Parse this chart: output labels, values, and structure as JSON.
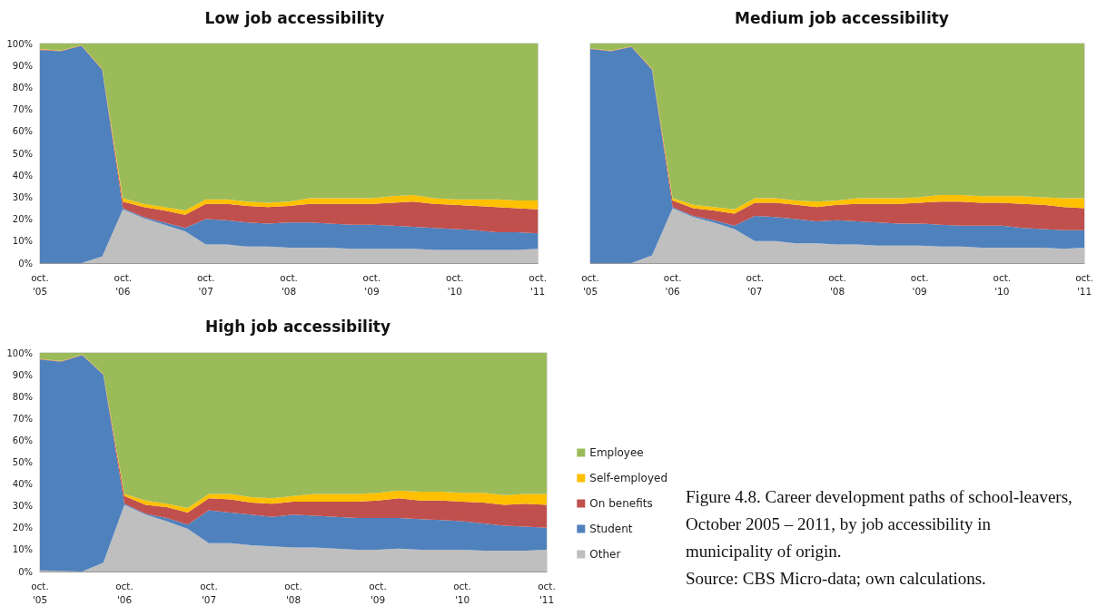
{
  "chart_data": [
    {
      "type": "area",
      "stacked": true,
      "title": "Low job accessibility",
      "categories": [
        "oct. '05",
        null,
        null,
        null,
        "oct. '06",
        null,
        null,
        null,
        "oct. '07",
        null,
        null,
        null,
        "oct. '08",
        null,
        null,
        null,
        "oct. '09",
        null,
        null,
        null,
        "oct. '10",
        null,
        null,
        null,
        "oct. '11"
      ],
      "ylim": [
        0,
        100
      ],
      "yticks": [
        {
          "value": 0,
          "label": "0%"
        },
        {
          "value": 10,
          "label": "10%"
        },
        {
          "value": 20,
          "label": "20%"
        },
        {
          "value": 30,
          "label": "30%"
        },
        {
          "value": 40,
          "label": "40%"
        },
        {
          "value": 50,
          "label": "50%"
        },
        {
          "value": 60,
          "label": "60%"
        },
        {
          "value": 70,
          "label": "70%"
        },
        {
          "value": 80,
          "label": "80%"
        },
        {
          "value": 90,
          "label": "90%"
        },
        {
          "value": 100,
          "label": "100%"
        }
      ],
      "grid": false,
      "legend": false,
      "series": [
        {
          "color": "#bfbfbf",
          "values": [
            0,
            0,
            0,
            3,
            24.5,
            20.5,
            17.5,
            14.5,
            8.5,
            8.5,
            7.5,
            7.5,
            7,
            7,
            7,
            6.5,
            6.5,
            6.5,
            6.5,
            6,
            6,
            6,
            6,
            6,
            6.5
          ]
        },
        {
          "color": "#4f81bd",
          "values": [
            97,
            96.5,
            99,
            85,
            0.5,
            0.5,
            1,
            1.5,
            11.5,
            11,
            11,
            10.5,
            11.5,
            11.5,
            11,
            11,
            11,
            10.5,
            10,
            10,
            9.5,
            9,
            8,
            8,
            7
          ]
        },
        {
          "color": "#c0504d",
          "values": [
            0.3,
            0.2,
            0.2,
            0.3,
            3,
            4.5,
            5.5,
            6,
            7,
            7.5,
            7.5,
            7.5,
            7.5,
            8.5,
            9,
            9.5,
            9.5,
            10.5,
            11.5,
            11,
            11,
            11,
            11.5,
            11,
            11
          ]
        },
        {
          "color": "#ffc000",
          "values": [
            0.2,
            0.1,
            0.1,
            0.2,
            1.5,
            1.5,
            1.5,
            2,
            2,
            2,
            2,
            2,
            2,
            2.5,
            2.5,
            2.5,
            2.5,
            3,
            3,
            2.5,
            2.5,
            3,
            3.5,
            3.5,
            4
          ]
        },
        {
          "color": "#9bbb59",
          "values": [
            2.5,
            3.2,
            0.7,
            11.5,
            70.5,
            73,
            74.5,
            76,
            71,
            71,
            72,
            72.5,
            72,
            70.5,
            70.5,
            70.5,
            70.5,
            69.5,
            69,
            70.5,
            71,
            71,
            71,
            71.5,
            71.5
          ]
        }
      ]
    },
    {
      "type": "area",
      "stacked": true,
      "title": "Medium job accessibility",
      "categories": [
        "oct. '05",
        null,
        null,
        null,
        "oct. '06",
        null,
        null,
        null,
        "oct. '07",
        null,
        null,
        null,
        "oct. '08",
        null,
        null,
        null,
        "oct. '09",
        null,
        null,
        null,
        "oct. '10",
        null,
        null,
        null,
        "oct. '11"
      ],
      "ylim": [
        0,
        100
      ],
      "tick_labels": "x",
      "grid": false,
      "legend": false,
      "series": [
        {
          "color": "#bfbfbf",
          "values": [
            0,
            0,
            0,
            3.5,
            25,
            21,
            18.5,
            15.5,
            10,
            10,
            9,
            9,
            8.5,
            8.5,
            8,
            8,
            8,
            7.5,
            7.5,
            7,
            7,
            7,
            7,
            6.5,
            7
          ]
        },
        {
          "color": "#4f81bd",
          "values": [
            97.5,
            96.5,
            98.5,
            84.5,
            0.5,
            0.5,
            1,
            1.5,
            11.5,
            11,
            11,
            10,
            11,
            10.5,
            10.5,
            10,
            10,
            10,
            9.5,
            10,
            10,
            9,
            8.5,
            8.5,
            8
          ]
        },
        {
          "color": "#c0504d",
          "values": [
            0.2,
            0.2,
            0.2,
            0.3,
            3,
            3.5,
            4.5,
            5.5,
            6,
            6.5,
            6.5,
            6.5,
            7,
            8,
            8.5,
            9,
            9.5,
            10.5,
            11,
            10.5,
            10.5,
            11,
            11,
            10.5,
            10
          ]
        },
        {
          "color": "#ffc000",
          "values": [
            0.1,
            0.1,
            0.1,
            0.2,
            1,
            1.5,
            1.5,
            2,
            2,
            2,
            2,
            2.5,
            2,
            2.5,
            2.5,
            2.5,
            2.5,
            3,
            3,
            3,
            3,
            3.5,
            3.5,
            4,
            4.5
          ]
        },
        {
          "color": "#9bbb59",
          "values": [
            2.2,
            3.2,
            1.2,
            11.5,
            70.5,
            73.5,
            74.5,
            75.5,
            70.5,
            70.5,
            71.5,
            72,
            71.5,
            70.5,
            70.5,
            70.5,
            70,
            69,
            69,
            69.5,
            69.5,
            69.5,
            70,
            70.5,
            70.5
          ]
        }
      ]
    },
    {
      "type": "area",
      "stacked": true,
      "title": "High job accessibility",
      "categories": [
        "oct. '05",
        null,
        null,
        null,
        "oct. '06",
        null,
        null,
        null,
        "oct. '07",
        null,
        null,
        null,
        "oct. '08",
        null,
        null,
        null,
        "oct. '09",
        null,
        null,
        null,
        "oct. '10",
        null,
        null,
        null,
        "oct. '11"
      ],
      "ylim": [
        0,
        100
      ],
      "yticks": [
        {
          "value": 0,
          "label": "0%"
        },
        {
          "value": 10,
          "label": "10%"
        },
        {
          "value": 20,
          "label": "20%"
        },
        {
          "value": 30,
          "label": "30%"
        },
        {
          "value": 40,
          "label": "40%"
        },
        {
          "value": 50,
          "label": "50%"
        },
        {
          "value": 60,
          "label": "60%"
        },
        {
          "value": 70,
          "label": "70%"
        },
        {
          "value": 80,
          "label": "80%"
        },
        {
          "value": 90,
          "label": "90%"
        },
        {
          "value": 100,
          "label": "100%"
        }
      ],
      "grid": false,
      "legend": "right",
      "annotations": [
        "Figure 4.8. Career development paths of school-leavers, October 2005 – 2011, by job accessibility in municipality of origin.",
        "Source: CBS Micro-data; own calculations."
      ],
      "series": [
        {
          "name": "Other",
          "color": "#bfbfbf",
          "values": [
            0.5,
            0.3,
            0,
            4,
            30.5,
            26,
            23,
            19.5,
            13,
            13,
            12,
            11.5,
            11,
            11,
            10.5,
            10,
            10,
            10.5,
            10,
            10,
            10,
            9.5,
            9.5,
            9.5,
            10
          ]
        },
        {
          "name": "Student",
          "color": "#4f81bd",
          "values": [
            96.5,
            95.7,
            99,
            86,
            0.5,
            0.5,
            1.5,
            2,
            15,
            14,
            14,
            13.5,
            15,
            14.5,
            14.5,
            14.5,
            14.5,
            14,
            14,
            13.5,
            13,
            12.5,
            11.5,
            11,
            10
          ]
        },
        {
          "name": "On benefits",
          "color": "#c0504d",
          "values": [
            0.2,
            0.2,
            0.2,
            0.3,
            3.5,
            4,
            5,
            5.5,
            5.5,
            6,
            5.5,
            6,
            6,
            6.5,
            7,
            7.5,
            8,
            9,
            8.5,
            9,
            9,
            9.5,
            9.5,
            10.5,
            10.5
          ]
        },
        {
          "name": "Self-employed",
          "color": "#ffc000",
          "values": [
            0.1,
            0.1,
            0.1,
            0.2,
            1,
            2,
            1.5,
            2,
            2,
            2.5,
            2.5,
            2.5,
            2.5,
            3.5,
            3.5,
            3.5,
            3.5,
            3.5,
            4,
            4,
            4,
            4.5,
            4.5,
            4.5,
            5
          ]
        },
        {
          "name": "Employee",
          "color": "#9bbb59",
          "values": [
            2.7,
            3.7,
            0.7,
            9.5,
            64.5,
            67.5,
            69,
            71,
            64.5,
            64.5,
            66,
            66.5,
            65.5,
            64.5,
            64.5,
            64.5,
            64,
            63,
            63.5,
            63.5,
            64,
            64,
            65,
            64.5,
            64.5
          ]
        }
      ]
    }
  ]
}
